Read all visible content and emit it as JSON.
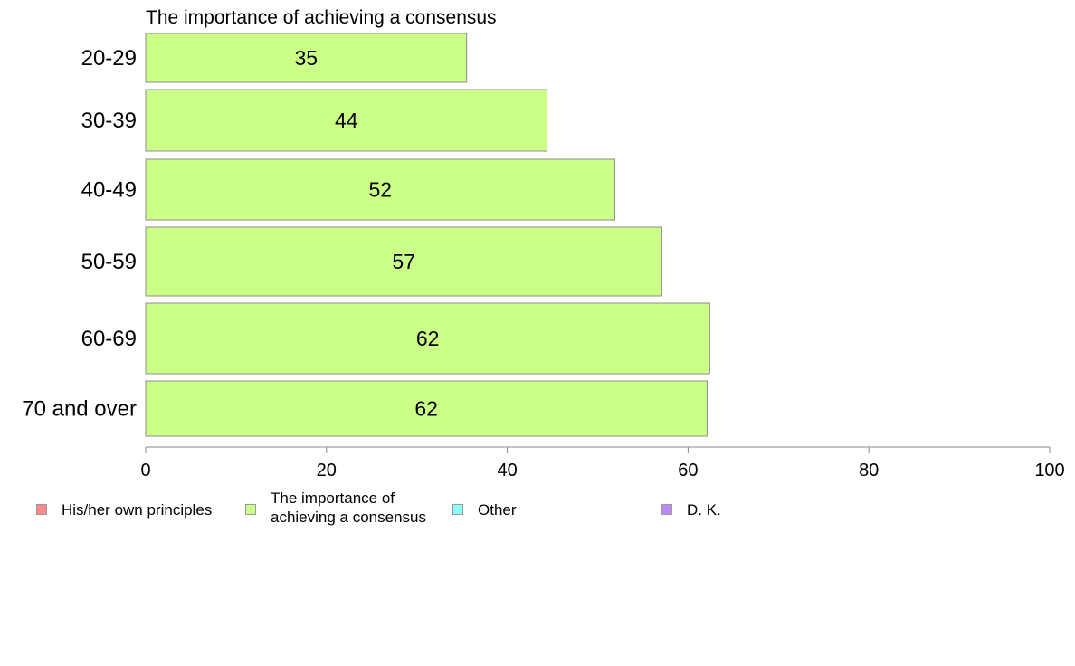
{
  "chart_data": {
    "type": "bar",
    "orientation": "horizontal",
    "title": "The importance of achieving a consensus",
    "categories": [
      "20-29",
      "30-39",
      "40-49",
      "50-59",
      "60-69",
      "70 and over"
    ],
    "series": [
      {
        "name": "The importance of achieving a consensus",
        "values": [
          35,
          44,
          52,
          57,
          62,
          62
        ],
        "color": "#ccff88"
      }
    ],
    "data_labels": [
      "35",
      "44",
      "52",
      "57",
      "62",
      "62"
    ],
    "bar_extent": [
      35.5,
      44.4,
      51.9,
      57.1,
      62.4,
      62.1
    ],
    "xlim": [
      0,
      100
    ],
    "xticks": [
      0,
      20,
      40,
      60,
      80,
      100
    ],
    "xtick_labels": [
      "0",
      "20",
      "40",
      "60",
      "80",
      "100"
    ],
    "grid": false,
    "legend_position": "bottom",
    "legend": [
      {
        "label": "His/her own principles",
        "color": "#ff8888"
      },
      {
        "label": "The importance of\nachieving a consensus",
        "color": "#ccff88"
      },
      {
        "label": "Other",
        "color": "#88ffff"
      },
      {
        "label": "D. K.",
        "color": "#bb88ff"
      }
    ]
  }
}
